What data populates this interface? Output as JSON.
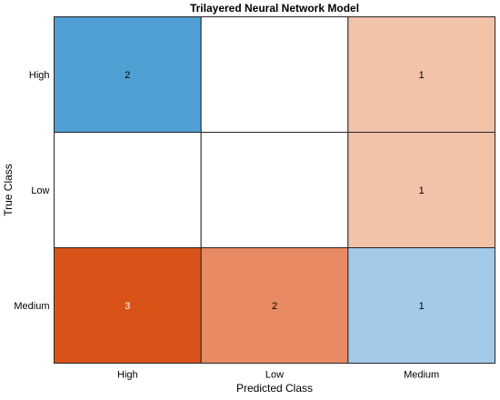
{
  "chart_data": {
    "type": "heatmap",
    "title": "Trilayered Neural Network Model",
    "xlabel": "Predicted Class",
    "ylabel": "True Class",
    "x_categories": [
      "High",
      "Low",
      "Medium"
    ],
    "y_categories": [
      "High",
      "Low",
      "Medium"
    ],
    "values": [
      [
        2,
        null,
        1
      ],
      [
        null,
        null,
        1
      ],
      [
        3,
        2,
        1
      ]
    ],
    "cell_colors": [
      [
        "#4f9fd4",
        "#ffffff",
        "#f2c2a9"
      ],
      [
        "#ffffff",
        "#ffffff",
        "#f2c2a9"
      ],
      [
        "#d95319",
        "#e88a62",
        "#a3c9e8"
      ]
    ],
    "cell_text_colors": [
      [
        "#000000",
        "#000000",
        "#000000"
      ],
      [
        "#000000",
        "#000000",
        "#000000"
      ],
      [
        "#ffffff",
        "#000000",
        "#000000"
      ]
    ],
    "grid": true
  }
}
